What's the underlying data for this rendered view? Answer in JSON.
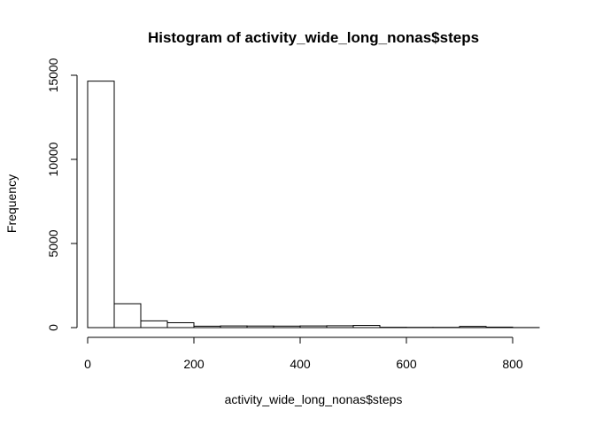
{
  "chart_data": {
    "type": "bar",
    "title": "Histogram of activity_wide_long_nonas$steps",
    "xlabel": "activity_wide_long_nonas$steps",
    "ylabel": "Frequency",
    "xlim": [
      0,
      850
    ],
    "ylim": [
      0,
      15000
    ],
    "bin_width": 50,
    "bins": [
      [
        0,
        50
      ],
      [
        50,
        100
      ],
      [
        100,
        150
      ],
      [
        150,
        200
      ],
      [
        200,
        250
      ],
      [
        250,
        300
      ],
      [
        300,
        350
      ],
      [
        350,
        400
      ],
      [
        400,
        450
      ],
      [
        450,
        500
      ],
      [
        500,
        550
      ],
      [
        550,
        600
      ],
      [
        600,
        650
      ],
      [
        650,
        700
      ],
      [
        700,
        750
      ],
      [
        750,
        800
      ],
      [
        800,
        850
      ]
    ],
    "values": [
      14650,
      1420,
      400,
      290,
      85,
      100,
      95,
      90,
      100,
      110,
      130,
      20,
      15,
      15,
      70,
      30,
      5
    ],
    "x_ticks": [
      0,
      200,
      400,
      600,
      800
    ],
    "x_tick_labels": [
      "0",
      "200",
      "400",
      "600",
      "800"
    ],
    "y_ticks": [
      0,
      5000,
      10000,
      15000
    ],
    "y_tick_labels": [
      "0",
      "5000",
      "10000",
      "15000"
    ],
    "grid": false,
    "bar_fill": "#ffffff",
    "bar_stroke": "#000000"
  }
}
